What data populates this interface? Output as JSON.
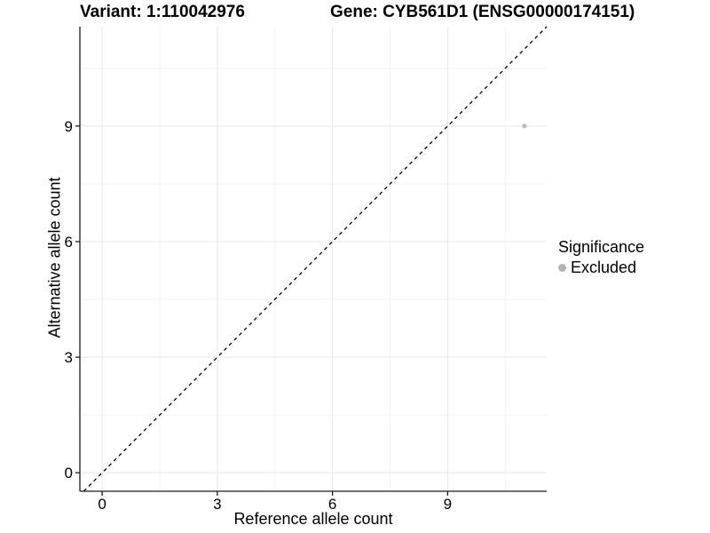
{
  "titles": {
    "left": "Variant: 1:110042976",
    "right": "Gene: CYB561D1 (ENSG00000174151)"
  },
  "chart_data": {
    "type": "scatter",
    "xlabel": "Reference allele count",
    "ylabel": "Alternative allele count",
    "xlim": [
      -0.58,
      11.58
    ],
    "ylim": [
      -0.48,
      11.58
    ],
    "xticks": [
      0,
      3,
      6,
      9
    ],
    "yticks": [
      0,
      3,
      6,
      9
    ],
    "xticks_minor": [
      1.5,
      4.5,
      7.5,
      10.5
    ],
    "yticks_minor": [
      1.5,
      4.5,
      7.5,
      10.5
    ],
    "grid": {
      "major": true,
      "minor": true
    },
    "series": [
      {
        "name": "Excluded",
        "color": "#bdbdbd",
        "points": [
          {
            "x": 11,
            "y": 9
          }
        ]
      }
    ],
    "reference_line": {
      "type": "identity",
      "slope": 1,
      "intercept": 0,
      "style": "dashed",
      "color": "#000000"
    },
    "legend": {
      "title": "Significance",
      "position": "right",
      "items": [
        {
          "label": "Excluded",
          "color": "#b5b5b5"
        }
      ]
    },
    "colors": {
      "axis": "#1a1a1a",
      "grid_major": "#e8e8e8",
      "grid_minor": "#f3f3f3",
      "background": "#ffffff"
    }
  }
}
